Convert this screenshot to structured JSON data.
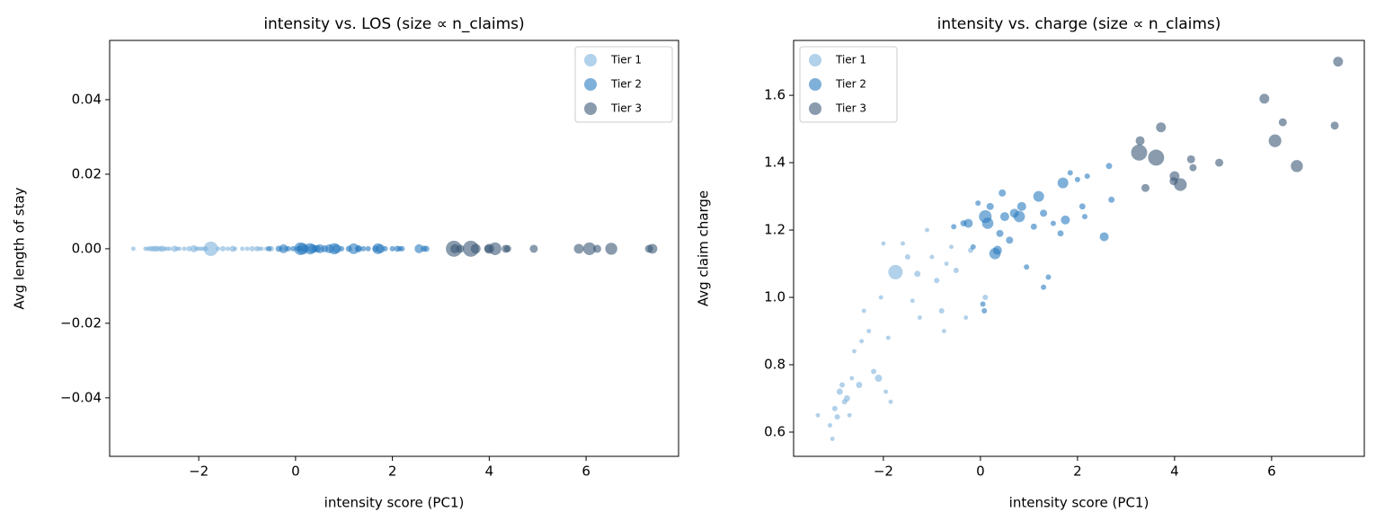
{
  "chart_data": [
    {
      "type": "scatter",
      "title": "intensity vs. LOS (size ∝ n_claims)",
      "x_label": "intensity score (PC1)",
      "y_label": "Avg length of stay",
      "xlim": [
        -3.84,
        7.91
      ],
      "ylim": [
        -0.0557,
        0.0559
      ],
      "xticks": [
        {
          "value": -2,
          "label": "−2"
        },
        0,
        2,
        4,
        6
      ],
      "yticks": [
        {
          "value": -0.04,
          "label": "−0.04"
        },
        {
          "value": -0.02,
          "label": "−0.02"
        },
        {
          "value": 0,
          "label": "0.00"
        },
        {
          "value": 0.02,
          "label": "0.02"
        },
        {
          "value": 0.04,
          "label": "0.04"
        }
      ],
      "legend": "upper right",
      "series": [
        {
          "name": "Tier 1",
          "color": "#7eb2dc",
          "x": [
            -3.35,
            -3.1,
            -3.05,
            -3.0,
            -2.95,
            -2.9,
            -2.85,
            -2.8,
            -2.75,
            -2.7,
            -2.65,
            -2.6,
            -2.5,
            -2.45,
            -2.4,
            -2.3,
            -2.2,
            -2.1,
            -2.05,
            -2.0,
            -1.95,
            -1.9,
            -1.85,
            -1.75,
            -1.6,
            -1.5,
            -1.4,
            -1.3,
            -1.25,
            -1.1,
            -1.0,
            -0.9,
            -0.8,
            -0.75,
            -0.7,
            -0.6,
            -0.5,
            -0.3,
            -0.2,
            0.1
          ],
          "values": [
            0,
            0,
            0,
            0,
            0,
            0,
            0,
            0,
            0,
            0,
            0,
            0,
            0,
            0,
            0,
            0,
            0,
            0,
            0,
            0,
            0,
            0,
            0,
            0,
            0,
            0,
            0,
            0,
            0,
            0,
            0,
            0,
            0,
            0,
            0,
            0,
            0,
            0,
            0,
            0
          ],
          "sizes": [
            6,
            6,
            6,
            9,
            9,
            12,
            9,
            9,
            12,
            6,
            6,
            6,
            12,
            6,
            6,
            6,
            9,
            16,
            6,
            6,
            6,
            6,
            6,
            64,
            6,
            9,
            6,
            12,
            6,
            6,
            6,
            9,
            9,
            6,
            6,
            6,
            9,
            6,
            9,
            9
          ]
        },
        {
          "name": "Tier 2",
          "color": "#2a7cc0",
          "x": [
            -0.55,
            -0.35,
            -0.25,
            -0.15,
            -0.05,
            0.05,
            0.08,
            0.1,
            0.15,
            0.2,
            0.3,
            0.35,
            0.4,
            0.45,
            0.6,
            0.7,
            0.8,
            0.85,
            0.95,
            1.1,
            1.2,
            1.3,
            1.4,
            1.5,
            1.65,
            1.7,
            1.75,
            1.85,
            2.0,
            2.1,
            2.15,
            2.2,
            2.55,
            2.65,
            2.7,
            1.3,
            0.5
          ],
          "values": [
            0,
            0,
            0,
            0,
            0,
            0,
            0,
            0,
            0,
            0,
            0,
            0,
            0,
            0,
            0,
            0,
            0,
            0,
            0,
            0,
            0,
            0,
            0,
            0,
            0,
            0,
            0,
            0,
            0,
            0,
            0,
            0,
            0,
            0,
            0,
            0,
            0
          ],
          "sizes": [
            9,
            12,
            25,
            9,
            9,
            9,
            9,
            50,
            40,
            16,
            40,
            25,
            16,
            16,
            16,
            25,
            40,
            25,
            9,
            12,
            36,
            16,
            9,
            9,
            12,
            36,
            25,
            9,
            9,
            12,
            9,
            9,
            25,
            12,
            12,
            9,
            25
          ]
        },
        {
          "name": "Tier 3",
          "color": "#3a5876",
          "x": [
            3.27,
            3.29,
            3.62,
            3.72,
            3.4,
            4.0,
            3.98,
            4.12,
            4.34,
            4.38,
            4.92,
            5.85,
            6.07,
            6.23,
            6.52,
            7.3,
            7.37
          ],
          "values": [
            0,
            0,
            0,
            0,
            0,
            0,
            0,
            0,
            0,
            0,
            0,
            0,
            0,
            0,
            0,
            0,
            0
          ],
          "sizes": [
            80,
            25,
            80,
            30,
            20,
            30,
            20,
            50,
            20,
            16,
            20,
            30,
            50,
            20,
            45,
            20,
            30
          ]
        }
      ]
    },
    {
      "type": "scatter",
      "title": "intensity vs. charge (size ∝ n_claims)",
      "x_label": "intensity score (PC1)",
      "y_label": "Avg claim charge",
      "xlim": [
        -3.85,
        7.91
      ],
      "ylim": [
        0.528,
        1.763
      ],
      "xticks": [
        {
          "value": -2,
          "label": "−2"
        },
        0,
        2,
        4,
        6
      ],
      "yticks": [
        0.6,
        0.8,
        {
          "value": 1,
          "label": "1.0"
        },
        1.2,
        1.4,
        1.6
      ],
      "legend": "upper left",
      "series": [
        {
          "name": "Tier 1",
          "color": "#7eb2dc",
          "x": [
            -3.35,
            -3.1,
            -3.05,
            -3.0,
            -2.95,
            -2.9,
            -2.85,
            -2.8,
            -2.75,
            -2.7,
            -2.65,
            -2.6,
            -2.5,
            -2.45,
            -2.4,
            -2.3,
            -2.2,
            -2.1,
            -2.05,
            -2.0,
            -1.95,
            -1.9,
            -1.85,
            -1.75,
            -1.6,
            -1.5,
            -1.4,
            -1.3,
            -1.25,
            -1.1,
            -1.0,
            -0.9,
            -0.8,
            -0.75,
            -0.7,
            -0.6,
            -0.5,
            -0.3,
            -0.2,
            0.1
          ],
          "values": [
            0.65,
            0.62,
            0.58,
            0.67,
            0.645,
            0.72,
            0.74,
            0.69,
            0.7,
            0.65,
            0.76,
            0.84,
            0.74,
            0.87,
            0.96,
            0.9,
            0.78,
            0.76,
            1.0,
            1.16,
            0.72,
            0.88,
            0.69,
            1.075,
            1.16,
            1.12,
            0.99,
            1.07,
            0.94,
            1.2,
            1.12,
            1.05,
            0.96,
            0.9,
            1.1,
            1.15,
            1.08,
            0.94,
            1.14,
            1.0
          ],
          "sizes": [
            6,
            6,
            6,
            9,
            9,
            12,
            9,
            9,
            12,
            6,
            6,
            6,
            12,
            6,
            6,
            6,
            9,
            16,
            6,
            6,
            6,
            6,
            6,
            64,
            6,
            9,
            6,
            12,
            6,
            6,
            6,
            9,
            9,
            6,
            6,
            6,
            9,
            6,
            9,
            9
          ]
        },
        {
          "name": "Tier 2",
          "color": "#2a7cc0",
          "x": [
            -0.55,
            -0.35,
            -0.25,
            -0.15,
            -0.05,
            0.05,
            0.08,
            0.1,
            0.15,
            0.2,
            0.3,
            0.35,
            0.4,
            0.45,
            0.6,
            0.7,
            0.8,
            0.85,
            0.95,
            1.1,
            1.2,
            1.3,
            1.4,
            1.5,
            1.65,
            1.7,
            1.75,
            1.85,
            2.0,
            2.1,
            2.15,
            2.2,
            2.55,
            2.65,
            2.7,
            1.3,
            0.5
          ],
          "values": [
            1.21,
            1.22,
            1.22,
            1.15,
            1.28,
            0.98,
            0.96,
            1.24,
            1.22,
            1.27,
            1.13,
            1.14,
            1.19,
            1.31,
            1.17,
            1.25,
            1.24,
            1.27,
            1.09,
            1.21,
            1.3,
            1.25,
            1.06,
            1.22,
            1.19,
            1.34,
            1.23,
            1.37,
            1.35,
            1.27,
            1.24,
            1.36,
            1.18,
            1.39,
            1.29,
            1.03,
            1.24
          ],
          "sizes": [
            9,
            12,
            25,
            9,
            9,
            9,
            9,
            50,
            40,
            16,
            40,
            25,
            16,
            16,
            16,
            25,
            40,
            25,
            9,
            12,
            36,
            16,
            9,
            9,
            12,
            36,
            25,
            9,
            9,
            12,
            9,
            9,
            25,
            12,
            12,
            9,
            25
          ]
        },
        {
          "name": "Tier 3",
          "color": "#3a5876",
          "x": [
            3.27,
            3.29,
            3.62,
            3.72,
            3.4,
            4.0,
            3.98,
            4.12,
            4.34,
            4.38,
            4.92,
            5.85,
            6.07,
            6.23,
            6.52,
            7.3,
            7.37
          ],
          "values": [
            1.43,
            1.465,
            1.415,
            1.505,
            1.325,
            1.36,
            1.345,
            1.335,
            1.41,
            1.385,
            1.4,
            1.59,
            1.465,
            1.52,
            1.39,
            1.51,
            1.7
          ],
          "sizes": [
            80,
            25,
            80,
            30,
            20,
            30,
            20,
            50,
            20,
            16,
            20,
            30,
            50,
            20,
            45,
            20,
            30
          ]
        }
      ]
    }
  ]
}
